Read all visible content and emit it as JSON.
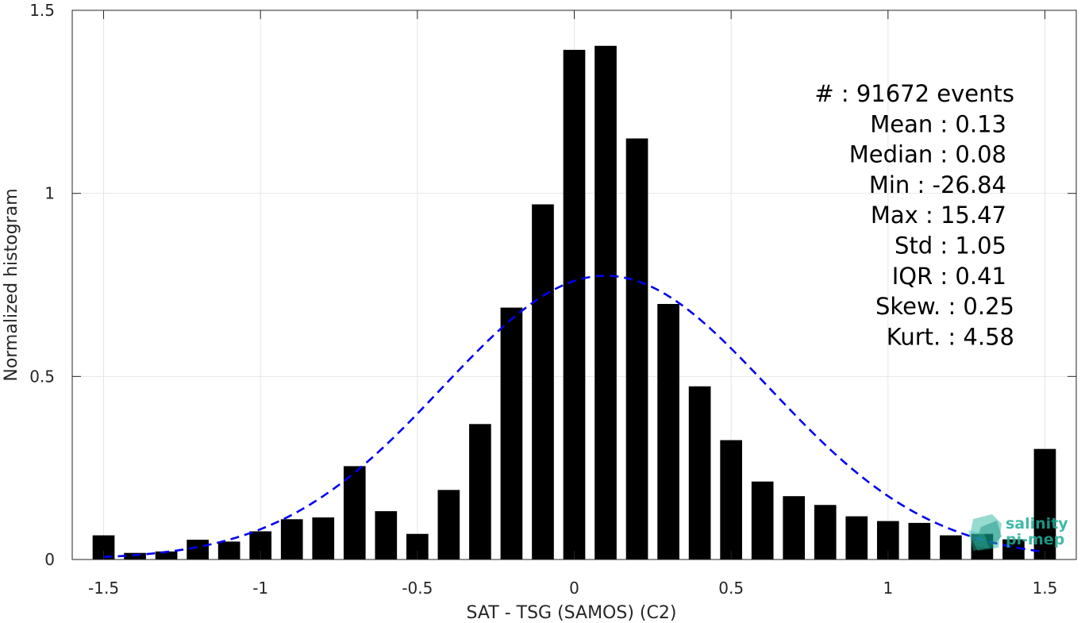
{
  "chart_data": {
    "type": "bar",
    "xlabel": "SAT - TSG (SAMOS) (C2)",
    "ylabel": "Normalized histogram",
    "xlim": [
      -1.6,
      1.6
    ],
    "ylim": [
      0,
      1.5
    ],
    "grid": true,
    "bar_width": 0.07,
    "x_ticks": [
      -1.5,
      -1,
      -0.5,
      0,
      0.5,
      1,
      1.5
    ],
    "x_tick_labels": [
      "-1.5",
      "-1",
      "-0.5",
      "0",
      "0.5",
      "1",
      "1.5"
    ],
    "y_ticks": [
      0,
      0.5,
      1,
      1.5
    ],
    "y_tick_labels": [
      "0",
      "0.5",
      "1",
      "1.5"
    ],
    "x": [
      -1.5,
      -1.4,
      -1.3,
      -1.2,
      -1.1,
      -1.0,
      -0.9,
      -0.8,
      -0.7,
      -0.6,
      -0.5,
      -0.4,
      -0.3,
      -0.2,
      -0.1,
      0.0,
      0.1,
      0.2,
      0.3,
      0.4,
      0.5,
      0.6,
      0.7,
      0.8,
      0.9,
      1.0,
      1.1,
      1.2,
      1.3,
      1.4,
      1.5
    ],
    "values": [
      0.066,
      0.018,
      0.022,
      0.054,
      0.049,
      0.077,
      0.11,
      0.115,
      0.255,
      0.132,
      0.07,
      0.19,
      0.37,
      0.688,
      0.97,
      1.392,
      1.403,
      1.15,
      0.698,
      0.473,
      0.326,
      0.213,
      0.173,
      0.149,
      0.118,
      0.105,
      0.1,
      0.066,
      0.07,
      0.055,
      0.302
    ],
    "fit_curve": {
      "style": "dashed",
      "color": "#0000ee",
      "mean": 0.1,
      "std": 0.52,
      "peak": 0.775
    },
    "bar_color": "#000000",
    "stats": [
      {
        "label": "#  : 91672 events",
        "align": "right"
      },
      {
        "label": "Mean : 0.13",
        "align": "right"
      },
      {
        "label": "Median : 0.08",
        "align": "right"
      },
      {
        "label": "Min : -26.84",
        "align": "right"
      },
      {
        "label": "Max : 15.47",
        "align": "right"
      },
      {
        "label": "Std : 1.05",
        "align": "right"
      },
      {
        "label": "IQR : 0.41",
        "align": "right"
      },
      {
        "label": "Skew. : 0.25",
        "align": "right"
      },
      {
        "label": "Kurt. : 4.58",
        "align": "right"
      }
    ]
  },
  "logo": {
    "line1": "salinity",
    "line2": "pi-mep",
    "color": "#1fae9a"
  }
}
